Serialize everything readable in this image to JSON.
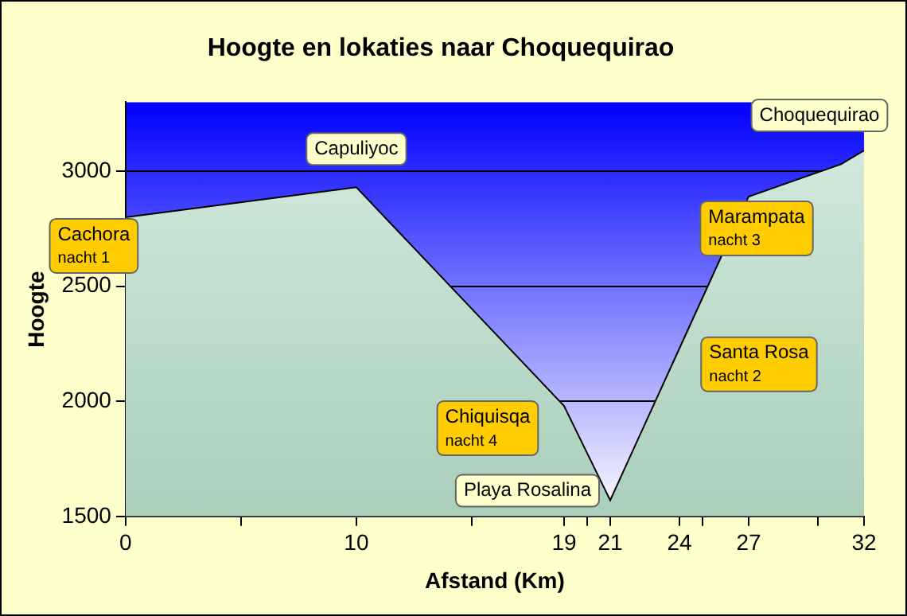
{
  "chart_data": {
    "type": "area",
    "title": "Hoogte en lokaties naar Choquequirao",
    "xlabel": "Afstand (Km)",
    "ylabel": "Hoogte",
    "x": [
      0,
      10,
      19,
      21,
      22,
      24,
      27,
      31,
      32
    ],
    "series": [
      {
        "color": "#a9cfbb",
        "values": [
          2800,
          2930,
          1980,
          1570,
          1790,
          2230,
          2890,
          3030,
          3090
        ]
      }
    ],
    "xlim": [
      0,
      32
    ],
    "xticks": [
      0,
      {
        "value": 5,
        "label": null
      },
      10,
      {
        "value": 15,
        "label": null
      },
      19,
      {
        "value": 20,
        "label": null
      },
      21,
      24,
      {
        "value": 25,
        "label": null
      },
      27,
      {
        "value": 30,
        "label": null
      },
      32
    ],
    "ylim": [
      1500,
      3300
    ],
    "yticks": [
      1500,
      2000,
      2500,
      3000
    ],
    "grid": "y",
    "legend": false,
    "annotations": [
      {
        "text": "Cachora\nnacht 1",
        "x": 0,
        "y": 2800
      },
      {
        "text": "Capuliyoc",
        "x": 10,
        "y": 2930
      },
      {
        "text": "Chiquisqa\nnacht 4",
        "x": 19,
        "y": 1980
      },
      {
        "text": "Playa Rosalina",
        "x": 21,
        "y": 1570
      },
      {
        "text": "Santa Rosa\nnacht 2",
        "x": 24,
        "y": 2230
      },
      {
        "text": "Marampata\nnacht 3",
        "x": 27,
        "y": 2890
      },
      {
        "text": "Choquequirao",
        "x": 32,
        "y": 3090
      }
    ]
  }
}
